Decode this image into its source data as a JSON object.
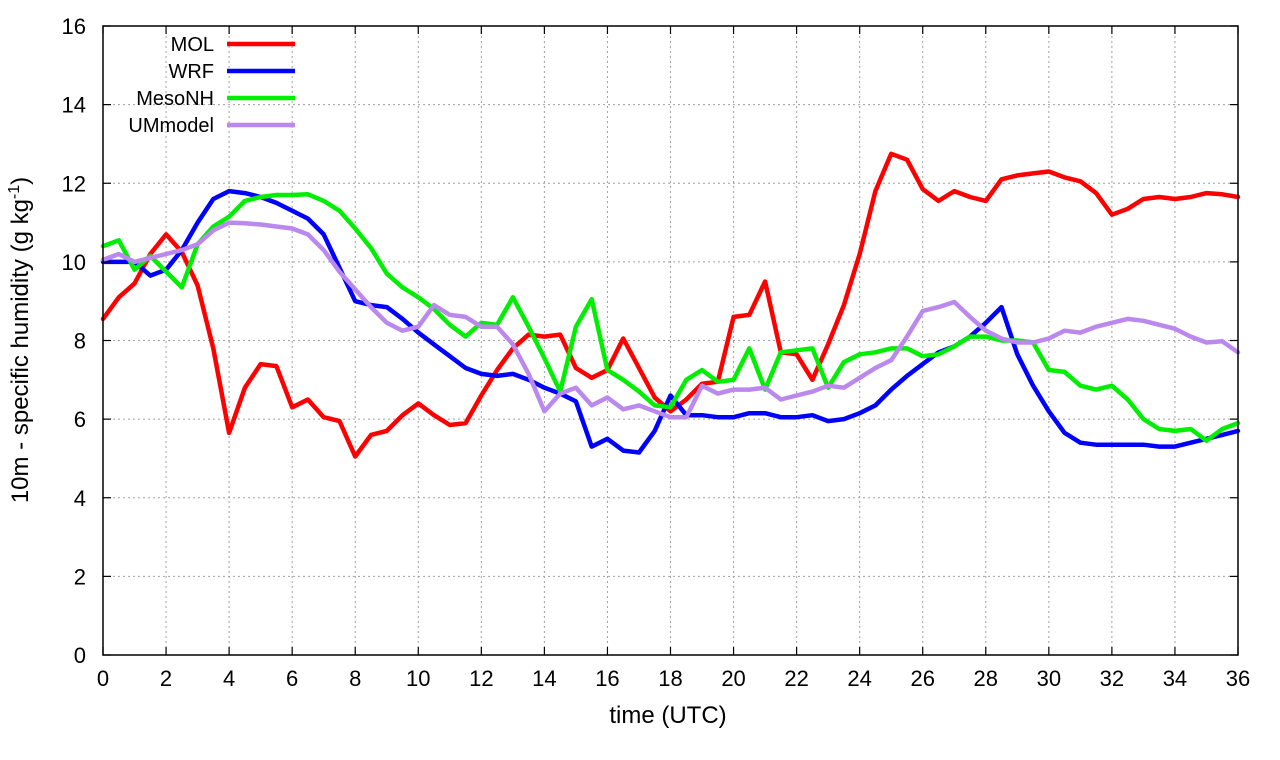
{
  "chart_data": {
    "type": "line",
    "xlabel": "time (UTC)",
    "ylabel_main": "10m - specific humidity (g kg",
    "ylabel_sup": "-1",
    "ylabel_end": ")",
    "xlim": [
      0,
      36
    ],
    "ylim": [
      0,
      16
    ],
    "xticks": [
      0,
      2,
      4,
      6,
      8,
      10,
      12,
      14,
      16,
      18,
      20,
      22,
      24,
      26,
      28,
      30,
      32,
      34,
      36
    ],
    "yticks": [
      0,
      2,
      4,
      6,
      8,
      10,
      12,
      14,
      16
    ],
    "grid": true,
    "legend_position": "top-left",
    "series": [
      {
        "name": "MOL",
        "color": "#ff0000",
        "points": [
          [
            0,
            8.55
          ],
          [
            0.5,
            9.1
          ],
          [
            1,
            9.45
          ],
          [
            1.5,
            10.2
          ],
          [
            2,
            10.7
          ],
          [
            2.5,
            10.25
          ],
          [
            3,
            9.4
          ],
          [
            3.5,
            7.8
          ],
          [
            4,
            5.65
          ],
          [
            4.5,
            6.8
          ],
          [
            5,
            7.4
          ],
          [
            5.5,
            7.35
          ],
          [
            6,
            6.3
          ],
          [
            6.5,
            6.5
          ],
          [
            7,
            6.05
          ],
          [
            7.5,
            5.95
          ],
          [
            8,
            5.05
          ],
          [
            8.5,
            5.6
          ],
          [
            9,
            5.7
          ],
          [
            9.5,
            6.1
          ],
          [
            10,
            6.4
          ],
          [
            10.5,
            6.1
          ],
          [
            11,
            5.85
          ],
          [
            11.5,
            5.9
          ],
          [
            12,
            6.6
          ],
          [
            12.5,
            7.25
          ],
          [
            13,
            7.8
          ],
          [
            13.5,
            8.15
          ],
          [
            14,
            8.1
          ],
          [
            14.5,
            8.15
          ],
          [
            15,
            7.3
          ],
          [
            15.5,
            7.05
          ],
          [
            16,
            7.25
          ],
          [
            16.5,
            8.05
          ],
          [
            17,
            7.3
          ],
          [
            17.5,
            6.55
          ],
          [
            18,
            6.2
          ],
          [
            18.5,
            6.5
          ],
          [
            19,
            6.9
          ],
          [
            19.5,
            6.95
          ],
          [
            20,
            8.6
          ],
          [
            20.5,
            8.65
          ],
          [
            21,
            9.5
          ],
          [
            21.5,
            7.7
          ],
          [
            22,
            7.65
          ],
          [
            22.5,
            7.0
          ],
          [
            23,
            7.9
          ],
          [
            23.5,
            8.9
          ],
          [
            24,
            10.2
          ],
          [
            24.5,
            11.8
          ],
          [
            25,
            12.75
          ],
          [
            25.5,
            12.6
          ],
          [
            26,
            11.85
          ],
          [
            26.5,
            11.55
          ],
          [
            27,
            11.8
          ],
          [
            27.5,
            11.65
          ],
          [
            28,
            11.55
          ],
          [
            28.5,
            12.1
          ],
          [
            29,
            12.2
          ],
          [
            29.5,
            12.25
          ],
          [
            30,
            12.3
          ],
          [
            30.5,
            12.15
          ],
          [
            31,
            12.05
          ],
          [
            31.5,
            11.75
          ],
          [
            32,
            11.2
          ],
          [
            32.5,
            11.35
          ],
          [
            33,
            11.6
          ],
          [
            33.5,
            11.65
          ],
          [
            34,
            11.6
          ],
          [
            34.5,
            11.65
          ],
          [
            35,
            11.75
          ],
          [
            35.5,
            11.72
          ],
          [
            36,
            11.65
          ]
        ]
      },
      {
        "name": "WRF",
        "color": "#0000ff",
        "points": [
          [
            0,
            10.0
          ],
          [
            0.5,
            10.0
          ],
          [
            1,
            10.0
          ],
          [
            1.5,
            9.65
          ],
          [
            2,
            9.8
          ],
          [
            2.5,
            10.3
          ],
          [
            3,
            11.0
          ],
          [
            3.5,
            11.6
          ],
          [
            4,
            11.8
          ],
          [
            4.5,
            11.75
          ],
          [
            5,
            11.65
          ],
          [
            5.5,
            11.5
          ],
          [
            6,
            11.3
          ],
          [
            6.5,
            11.1
          ],
          [
            7,
            10.7
          ],
          [
            7.5,
            9.85
          ],
          [
            8,
            9.0
          ],
          [
            8.5,
            8.9
          ],
          [
            9,
            8.85
          ],
          [
            9.5,
            8.55
          ],
          [
            10,
            8.2
          ],
          [
            10.5,
            7.9
          ],
          [
            11,
            7.6
          ],
          [
            11.5,
            7.3
          ],
          [
            12,
            7.15
          ],
          [
            12.5,
            7.1
          ],
          [
            13,
            7.15
          ],
          [
            13.5,
            7.0
          ],
          [
            14,
            6.8
          ],
          [
            14.5,
            6.65
          ],
          [
            15,
            6.45
          ],
          [
            15.5,
            5.3
          ],
          [
            16,
            5.5
          ],
          [
            16.5,
            5.2
          ],
          [
            17,
            5.15
          ],
          [
            17.5,
            5.7
          ],
          [
            18,
            6.6
          ],
          [
            18.5,
            6.1
          ],
          [
            19,
            6.1
          ],
          [
            19.5,
            6.05
          ],
          [
            20,
            6.05
          ],
          [
            20.5,
            6.15
          ],
          [
            21,
            6.15
          ],
          [
            21.5,
            6.05
          ],
          [
            22,
            6.05
          ],
          [
            22.5,
            6.1
          ],
          [
            23,
            5.95
          ],
          [
            23.5,
            6.0
          ],
          [
            24,
            6.15
          ],
          [
            24.5,
            6.35
          ],
          [
            25,
            6.75
          ],
          [
            25.5,
            7.1
          ],
          [
            26,
            7.4
          ],
          [
            26.5,
            7.7
          ],
          [
            27,
            7.85
          ],
          [
            27.5,
            8.1
          ],
          [
            28,
            8.45
          ],
          [
            28.5,
            8.85
          ],
          [
            29,
            7.65
          ],
          [
            29.5,
            6.85
          ],
          [
            30,
            6.2
          ],
          [
            30.5,
            5.65
          ],
          [
            31,
            5.4
          ],
          [
            31.5,
            5.35
          ],
          [
            32,
            5.35
          ],
          [
            32.5,
            5.35
          ],
          [
            33,
            5.35
          ],
          [
            33.5,
            5.3
          ],
          [
            34,
            5.3
          ],
          [
            34.5,
            5.4
          ],
          [
            35,
            5.5
          ],
          [
            35.5,
            5.6
          ],
          [
            36,
            5.7
          ]
        ]
      },
      {
        "name": "MesoNH",
        "color": "#00ee00",
        "points": [
          [
            0,
            10.4
          ],
          [
            0.5,
            10.55
          ],
          [
            1,
            9.8
          ],
          [
            1.5,
            10.15
          ],
          [
            2,
            9.75
          ],
          [
            2.5,
            9.35
          ],
          [
            3,
            10.45
          ],
          [
            3.5,
            10.9
          ],
          [
            4,
            11.15
          ],
          [
            4.5,
            11.55
          ],
          [
            5,
            11.65
          ],
          [
            5.5,
            11.7
          ],
          [
            6,
            11.7
          ],
          [
            6.5,
            11.72
          ],
          [
            7,
            11.55
          ],
          [
            7.5,
            11.3
          ],
          [
            8,
            10.85
          ],
          [
            8.5,
            10.35
          ],
          [
            9,
            9.7
          ],
          [
            9.5,
            9.35
          ],
          [
            10,
            9.1
          ],
          [
            10.5,
            8.8
          ],
          [
            11,
            8.4
          ],
          [
            11.5,
            8.1
          ],
          [
            12,
            8.45
          ],
          [
            12.5,
            8.4
          ],
          [
            13,
            9.1
          ],
          [
            13.5,
            8.35
          ],
          [
            14,
            7.55
          ],
          [
            14.5,
            6.7
          ],
          [
            15,
            8.35
          ],
          [
            15.5,
            9.05
          ],
          [
            16,
            7.25
          ],
          [
            16.5,
            7.0
          ],
          [
            17,
            6.7
          ],
          [
            17.5,
            6.35
          ],
          [
            18,
            6.3
          ],
          [
            18.5,
            7.0
          ],
          [
            19,
            7.25
          ],
          [
            19.5,
            6.95
          ],
          [
            20,
            7.0
          ],
          [
            20.5,
            7.8
          ],
          [
            21,
            6.75
          ],
          [
            21.5,
            7.7
          ],
          [
            22,
            7.75
          ],
          [
            22.5,
            7.8
          ],
          [
            23,
            6.8
          ],
          [
            23.5,
            7.45
          ],
          [
            24,
            7.65
          ],
          [
            24.5,
            7.7
          ],
          [
            25,
            7.8
          ],
          [
            25.5,
            7.8
          ],
          [
            26,
            7.6
          ],
          [
            26.5,
            7.65
          ],
          [
            27,
            7.85
          ],
          [
            27.5,
            8.1
          ],
          [
            28,
            8.1
          ],
          [
            28.5,
            8.0
          ],
          [
            29,
            8.0
          ],
          [
            29.5,
            7.95
          ],
          [
            30,
            7.25
          ],
          [
            30.5,
            7.2
          ],
          [
            31,
            6.85
          ],
          [
            31.5,
            6.75
          ],
          [
            32,
            6.85
          ],
          [
            32.5,
            6.5
          ],
          [
            33,
            6.0
          ],
          [
            33.5,
            5.75
          ],
          [
            34,
            5.7
          ],
          [
            34.5,
            5.75
          ],
          [
            35,
            5.45
          ],
          [
            35.5,
            5.75
          ],
          [
            36,
            5.9
          ]
        ]
      },
      {
        "name": "UMmodel",
        "color": "#bb88ee",
        "points": [
          [
            0,
            10.05
          ],
          [
            0.5,
            10.2
          ],
          [
            1,
            10.0
          ],
          [
            1.5,
            10.1
          ],
          [
            2,
            10.2
          ],
          [
            2.5,
            10.3
          ],
          [
            3,
            10.45
          ],
          [
            3.5,
            10.8
          ],
          [
            4,
            11.0
          ],
          [
            4.5,
            10.98
          ],
          [
            5,
            10.95
          ],
          [
            5.5,
            10.9
          ],
          [
            6,
            10.85
          ],
          [
            6.5,
            10.7
          ],
          [
            7,
            10.3
          ],
          [
            7.5,
            9.75
          ],
          [
            8,
            9.3
          ],
          [
            8.5,
            8.85
          ],
          [
            9,
            8.45
          ],
          [
            9.5,
            8.25
          ],
          [
            10,
            8.35
          ],
          [
            10.5,
            8.9
          ],
          [
            11,
            8.65
          ],
          [
            11.5,
            8.6
          ],
          [
            12,
            8.35
          ],
          [
            12.5,
            8.35
          ],
          [
            13,
            7.9
          ],
          [
            13.5,
            7.15
          ],
          [
            14,
            6.2
          ],
          [
            14.5,
            6.65
          ],
          [
            15,
            6.8
          ],
          [
            15.5,
            6.35
          ],
          [
            16,
            6.55
          ],
          [
            16.5,
            6.25
          ],
          [
            17,
            6.35
          ],
          [
            17.5,
            6.2
          ],
          [
            18,
            6.05
          ],
          [
            18.5,
            6.05
          ],
          [
            19,
            6.85
          ],
          [
            19.5,
            6.65
          ],
          [
            20,
            6.75
          ],
          [
            20.5,
            6.75
          ],
          [
            21,
            6.8
          ],
          [
            21.5,
            6.5
          ],
          [
            22,
            6.6
          ],
          [
            22.5,
            6.7
          ],
          [
            23,
            6.85
          ],
          [
            23.5,
            6.8
          ],
          [
            24,
            7.05
          ],
          [
            24.5,
            7.3
          ],
          [
            25,
            7.5
          ],
          [
            25.5,
            8.1
          ],
          [
            26,
            8.75
          ],
          [
            26.5,
            8.85
          ],
          [
            27,
            8.98
          ],
          [
            27.5,
            8.6
          ],
          [
            28,
            8.25
          ],
          [
            28.5,
            8.05
          ],
          [
            29,
            7.95
          ],
          [
            29.5,
            7.95
          ],
          [
            30,
            8.05
          ],
          [
            30.5,
            8.25
          ],
          [
            31,
            8.2
          ],
          [
            31.5,
            8.35
          ],
          [
            32,
            8.45
          ],
          [
            32.5,
            8.55
          ],
          [
            33,
            8.5
          ],
          [
            33.5,
            8.4
          ],
          [
            34,
            8.3
          ],
          [
            34.5,
            8.1
          ],
          [
            35,
            7.95
          ],
          [
            35.5,
            7.98
          ],
          [
            36,
            7.7
          ]
        ]
      }
    ]
  }
}
